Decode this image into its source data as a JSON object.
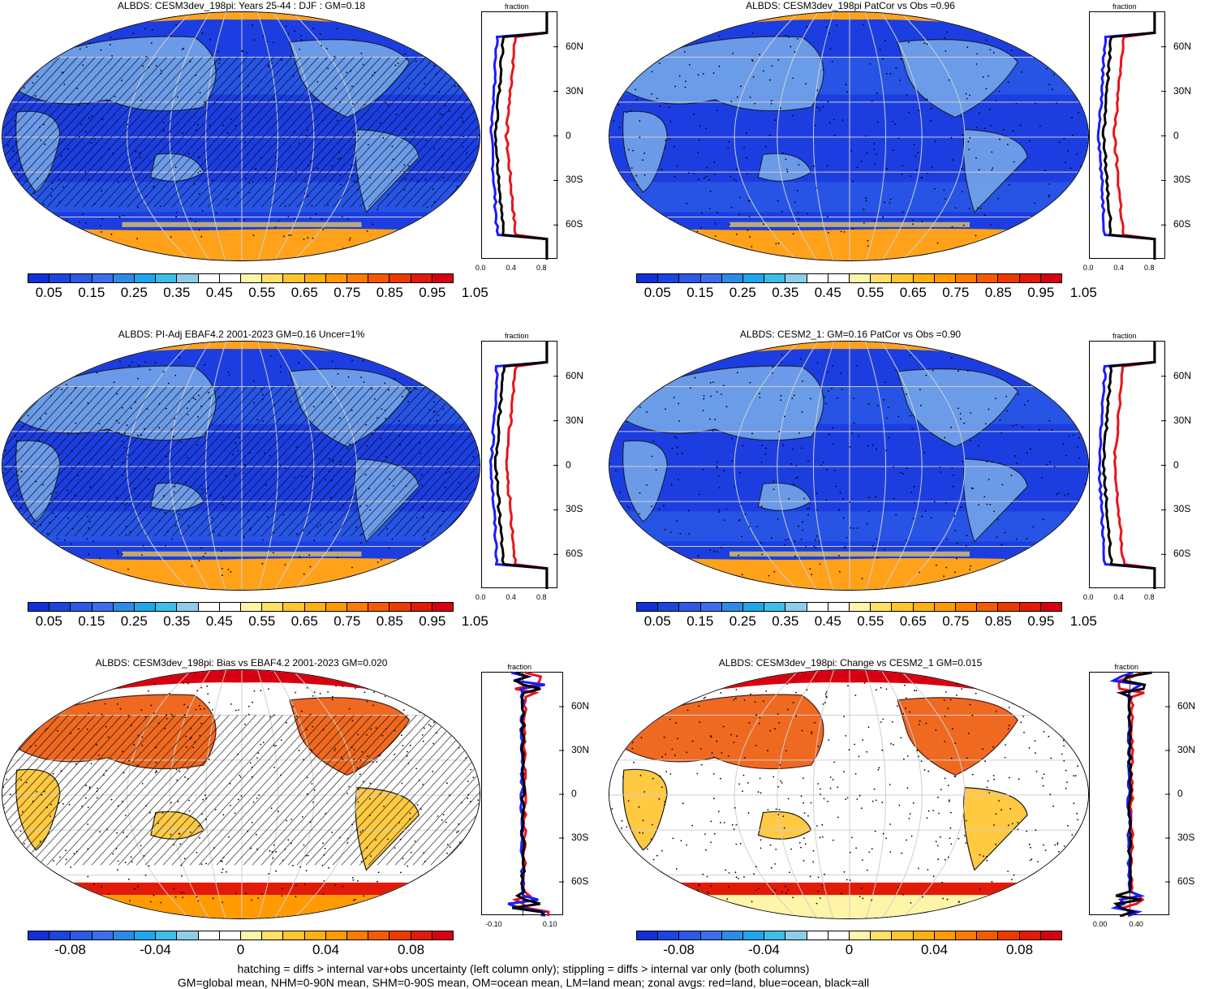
{
  "panels": [
    {
      "title": "ALBDS: CESM3dev_198pi: Years 25-44 : DJF : GM=0.18",
      "type": "absolute",
      "hatched": true
    },
    {
      "title": "ALBDS: CESM3dev_198pi PatCor vs Obs =0.96",
      "type": "absolute",
      "hatched": false
    },
    {
      "title": "ALBDS: PI-Adj EBAF4.2 2001-2023 GM=0.16 Uncer=1%",
      "type": "absolute",
      "hatched": true
    },
    {
      "title": "ALBDS: CESM2_1: GM=0.16 PatCor vs Obs =0.90",
      "type": "absolute",
      "hatched": false
    },
    {
      "title": "ALBDS: CESM3dev_198pi: Bias vs EBAF4.2 2001-2023 GM=0.020",
      "type": "diff",
      "hatched": true
    },
    {
      "title": "ALBDS: CESM3dev_198pi: Change vs CESM2_1 GM=0.015",
      "type": "diff",
      "hatched": false
    }
  ],
  "zonal": {
    "top_label": "fraction",
    "lat_labels": [
      "60N",
      "30N",
      "0",
      "30S",
      "60S"
    ],
    "abs_x_ticks": [
      "0.0",
      "0.4",
      "0.8"
    ],
    "bias_x_ticks": [
      "-0.10",
      "0.10"
    ],
    "change_x_ticks": [
      "0.00",
      "0.40"
    ],
    "legend_colors": {
      "land": "#e8141c",
      "ocean": "#1a1aff",
      "all": "#000000"
    }
  },
  "colorbars": {
    "abs_labels": [
      "0.05",
      "0.15",
      "0.25",
      "0.35",
      "0.45",
      "0.55",
      "0.65",
      "0.75",
      "0.85",
      "0.95",
      "1.05"
    ],
    "diff_labels": [
      "-0.08",
      "-0.04",
      "0",
      "0.04",
      "0.08"
    ],
    "colors": [
      "#1230d8",
      "#1c44e0",
      "#2a5ae6",
      "#3a6eec",
      "#2b8be8",
      "#1ea6ec",
      "#3dbde8",
      "#8ccde8",
      "#ffffff",
      "#ffffff",
      "#fff5a8",
      "#ffe066",
      "#ffc52e",
      "#ffb010",
      "#ff9a00",
      "#ff7a00",
      "#f55a00",
      "#ee3a00",
      "#e21a08",
      "#d80010"
    ]
  },
  "footer": {
    "line1": "hatching = diffs > internal var+obs uncertainty (left column only); stippling = diffs > internal var only (both columns)",
    "line2": "GM=global mean, NHM=0-90N mean, SHM=0-90S mean, OM=ocean mean, LM=land mean; zonal avgs: red=land, blue=ocean, black=all"
  }
}
